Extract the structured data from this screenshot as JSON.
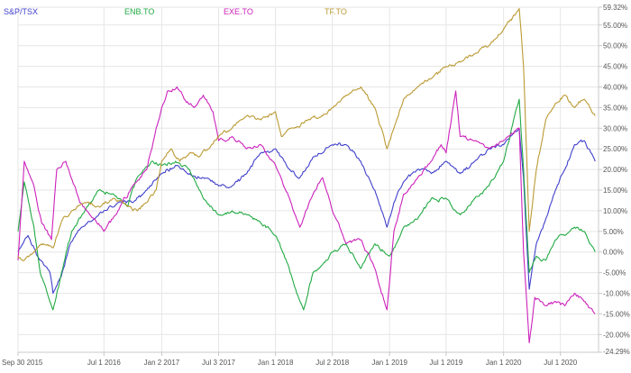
{
  "chart_data": {
    "type": "line",
    "title": "",
    "xlabel": "",
    "ylabel": "",
    "x_range": [
      "2015-09-30",
      "2020-10-31"
    ],
    "ylim": [
      -24.29,
      59.32
    ],
    "y_axis_side": "right",
    "grid": true,
    "legend_position": "top-left",
    "x_ticks": [
      {
        "date": "2015-09-30",
        "label": "Sep 30 2015"
      },
      {
        "date": "2016-07-01",
        "label": "Jul 1 2016"
      },
      {
        "date": "2017-01-02",
        "label": "Jan 2 2017"
      },
      {
        "date": "2017-07-03",
        "label": "Jul 3 2017"
      },
      {
        "date": "2018-01-01",
        "label": "Jan 1 2018"
      },
      {
        "date": "2018-07-02",
        "label": "Jul 2 2018"
      },
      {
        "date": "2019-01-01",
        "label": "Jan 1 2019"
      },
      {
        "date": "2019-07-01",
        "label": "Jul 1 2019"
      },
      {
        "date": "2020-01-01",
        "label": "Jan 1 2020"
      },
      {
        "date": "2020-07-01",
        "label": "Jul 1 2020"
      }
    ],
    "y_ticks": [
      {
        "value": 59.32,
        "label": "59.32%"
      },
      {
        "value": 55,
        "label": "55.00%"
      },
      {
        "value": 50,
        "label": "50.00%"
      },
      {
        "value": 45,
        "label": "45.00%"
      },
      {
        "value": 40,
        "label": "40.00%"
      },
      {
        "value": 35,
        "label": "35.00%"
      },
      {
        "value": 30,
        "label": "30.00%"
      },
      {
        "value": 25,
        "label": "25.00%"
      },
      {
        "value": 20,
        "label": "20.00%"
      },
      {
        "value": 15,
        "label": "15.00%"
      },
      {
        "value": 10,
        "label": "10.00%"
      },
      {
        "value": 5,
        "label": "5.00%"
      },
      {
        "value": 0,
        "label": "0.00%"
      },
      {
        "value": -5,
        "label": "-5.00%"
      },
      {
        "value": -10,
        "label": "-10.00%"
      },
      {
        "value": -15,
        "label": "-15.00%"
      },
      {
        "value": -20,
        "label": "-20.00%"
      },
      {
        "value": -24.29,
        "label": "-24.29%"
      }
    ],
    "series": [
      {
        "name": "S&P/TSX",
        "color": "#4040cc",
        "points": [
          [
            "2015-09-30",
            0
          ],
          [
            "2015-11-01",
            4
          ],
          [
            "2015-12-01",
            -1
          ],
          [
            "2016-01-10",
            -5
          ],
          [
            "2016-01-20",
            -10
          ],
          [
            "2016-02-15",
            -6
          ],
          [
            "2016-03-15",
            2
          ],
          [
            "2016-04-20",
            6
          ],
          [
            "2016-06-01",
            8
          ],
          [
            "2016-07-01",
            10
          ],
          [
            "2016-08-15",
            12
          ],
          [
            "2016-10-01",
            12
          ],
          [
            "2016-11-15",
            15
          ],
          [
            "2017-01-02",
            19
          ],
          [
            "2017-02-15",
            21
          ],
          [
            "2017-04-01",
            19
          ],
          [
            "2017-05-15",
            18
          ],
          [
            "2017-07-03",
            16
          ],
          [
            "2017-08-15",
            16
          ],
          [
            "2017-10-01",
            19
          ],
          [
            "2017-11-15",
            24
          ],
          [
            "2018-01-01",
            25
          ],
          [
            "2018-02-15",
            20
          ],
          [
            "2018-03-20",
            18
          ],
          [
            "2018-05-01",
            23
          ],
          [
            "2018-07-02",
            26
          ],
          [
            "2018-08-15",
            26
          ],
          [
            "2018-10-01",
            22
          ],
          [
            "2018-11-15",
            15
          ],
          [
            "2018-12-24",
            6
          ],
          [
            "2019-01-15",
            12
          ],
          [
            "2019-02-15",
            17
          ],
          [
            "2019-04-01",
            20
          ],
          [
            "2019-05-15",
            19
          ],
          [
            "2019-07-01",
            22
          ],
          [
            "2019-08-15",
            19
          ],
          [
            "2019-10-01",
            22
          ],
          [
            "2019-11-15",
            25
          ],
          [
            "2020-01-01",
            26
          ],
          [
            "2020-02-20",
            30
          ],
          [
            "2020-03-05",
            18
          ],
          [
            "2020-03-23",
            -9
          ],
          [
            "2020-04-15",
            2
          ],
          [
            "2020-05-15",
            8
          ],
          [
            "2020-06-15",
            15
          ],
          [
            "2020-07-15",
            20
          ],
          [
            "2020-08-15",
            26
          ],
          [
            "2020-09-15",
            27
          ],
          [
            "2020-10-20",
            22
          ]
        ]
      },
      {
        "name": "ENB.TO",
        "color": "#22aa44",
        "points": [
          [
            "2015-09-30",
            5
          ],
          [
            "2015-10-20",
            17
          ],
          [
            "2015-11-20",
            6
          ],
          [
            "2015-12-10",
            -5
          ],
          [
            "2016-01-20",
            -14
          ],
          [
            "2016-02-20",
            -4
          ],
          [
            "2016-03-20",
            5
          ],
          [
            "2016-05-01",
            10
          ],
          [
            "2016-06-15",
            15
          ],
          [
            "2016-08-01",
            14
          ],
          [
            "2016-09-15",
            11
          ],
          [
            "2016-10-15",
            18
          ],
          [
            "2016-12-01",
            22
          ],
          [
            "2017-01-02",
            21
          ],
          [
            "2017-02-15",
            22
          ],
          [
            "2017-04-01",
            20
          ],
          [
            "2017-05-15",
            13
          ],
          [
            "2017-07-03",
            9
          ],
          [
            "2017-08-15",
            10
          ],
          [
            "2017-10-01",
            9
          ],
          [
            "2017-11-15",
            7
          ],
          [
            "2018-01-01",
            4
          ],
          [
            "2018-02-10",
            -3
          ],
          [
            "2018-03-10",
            -10
          ],
          [
            "2018-04-01",
            -14
          ],
          [
            "2018-05-01",
            -5
          ],
          [
            "2018-06-01",
            -3
          ],
          [
            "2018-07-02",
            0
          ],
          [
            "2018-08-15",
            2
          ],
          [
            "2018-10-01",
            -4
          ],
          [
            "2018-11-15",
            2
          ],
          [
            "2019-01-01",
            -1
          ],
          [
            "2019-02-15",
            6
          ],
          [
            "2019-04-01",
            8
          ],
          [
            "2019-05-15",
            13
          ],
          [
            "2019-07-01",
            13
          ],
          [
            "2019-08-15",
            9
          ],
          [
            "2019-10-01",
            13
          ],
          [
            "2019-11-15",
            16
          ],
          [
            "2020-01-01",
            22
          ],
          [
            "2020-02-20",
            37
          ],
          [
            "2020-03-05",
            20
          ],
          [
            "2020-03-23",
            -5
          ],
          [
            "2020-04-15",
            -1
          ],
          [
            "2020-05-15",
            -2
          ],
          [
            "2020-06-15",
            3
          ],
          [
            "2020-07-15",
            4
          ],
          [
            "2020-08-15",
            6
          ],
          [
            "2020-09-15",
            5
          ],
          [
            "2020-10-20",
            0
          ]
        ]
      },
      {
        "name": "EXE.TO",
        "color": "#cc22bb",
        "points": [
          [
            "2015-09-30",
            -2
          ],
          [
            "2015-10-20",
            22
          ],
          [
            "2015-11-20",
            16
          ],
          [
            "2015-12-15",
            7
          ],
          [
            "2016-01-15",
            3
          ],
          [
            "2016-02-01",
            20
          ],
          [
            "2016-03-01",
            22
          ],
          [
            "2016-04-15",
            12
          ],
          [
            "2016-06-01",
            8
          ],
          [
            "2016-07-01",
            5
          ],
          [
            "2016-08-15",
            10
          ],
          [
            "2016-10-01",
            16
          ],
          [
            "2016-11-15",
            20
          ],
          [
            "2016-12-15",
            30
          ],
          [
            "2017-01-02",
            35
          ],
          [
            "2017-01-20",
            39
          ],
          [
            "2017-02-20",
            40
          ],
          [
            "2017-03-15",
            37
          ],
          [
            "2017-04-15",
            35
          ],
          [
            "2017-05-15",
            38
          ],
          [
            "2017-06-15",
            34
          ],
          [
            "2017-07-03",
            27
          ],
          [
            "2017-08-15",
            28
          ],
          [
            "2017-10-01",
            25
          ],
          [
            "2017-11-15",
            26
          ],
          [
            "2018-01-01",
            21
          ],
          [
            "2018-02-15",
            13
          ],
          [
            "2018-03-20",
            6
          ],
          [
            "2018-05-01",
            14
          ],
          [
            "2018-06-01",
            18
          ],
          [
            "2018-07-02",
            10
          ],
          [
            "2018-08-15",
            2
          ],
          [
            "2018-10-01",
            3
          ],
          [
            "2018-11-15",
            -4
          ],
          [
            "2018-12-24",
            -14
          ],
          [
            "2019-01-15",
            5
          ],
          [
            "2019-02-15",
            14
          ],
          [
            "2019-04-01",
            18
          ],
          [
            "2019-05-15",
            22
          ],
          [
            "2019-06-15",
            26
          ],
          [
            "2019-07-01",
            24
          ],
          [
            "2019-08-01",
            39
          ],
          [
            "2019-08-15",
            28
          ],
          [
            "2019-10-01",
            27
          ],
          [
            "2019-11-15",
            25
          ],
          [
            "2020-01-01",
            27
          ],
          [
            "2020-02-20",
            30
          ],
          [
            "2020-03-05",
            0
          ],
          [
            "2020-03-23",
            -22
          ],
          [
            "2020-04-10",
            -11
          ],
          [
            "2020-05-15",
            -13
          ],
          [
            "2020-06-15",
            -12
          ],
          [
            "2020-07-15",
            -13
          ],
          [
            "2020-08-15",
            -10
          ],
          [
            "2020-09-15",
            -12
          ],
          [
            "2020-10-20",
            -15
          ]
        ]
      },
      {
        "name": "TF.TO",
        "color": "#bb9a33",
        "points": [
          [
            "2015-09-30",
            -1
          ],
          [
            "2015-10-20",
            -2
          ],
          [
            "2015-11-20",
            0
          ],
          [
            "2015-12-20",
            2
          ],
          [
            "2016-01-20",
            1
          ],
          [
            "2016-02-20",
            8
          ],
          [
            "2016-03-20",
            10
          ],
          [
            "2016-05-01",
            12
          ],
          [
            "2016-06-15",
            11
          ],
          [
            "2016-08-01",
            13
          ],
          [
            "2016-09-15",
            11
          ],
          [
            "2016-10-15",
            10
          ],
          [
            "2016-11-15",
            12
          ],
          [
            "2016-12-15",
            15
          ],
          [
            "2017-01-02",
            22
          ],
          [
            "2017-02-01",
            25
          ],
          [
            "2017-03-01",
            22
          ],
          [
            "2017-04-01",
            24
          ],
          [
            "2017-05-01",
            23
          ],
          [
            "2017-06-01",
            25
          ],
          [
            "2017-07-03",
            28
          ],
          [
            "2017-08-15",
            30
          ],
          [
            "2017-10-01",
            33
          ],
          [
            "2017-11-15",
            32
          ],
          [
            "2018-01-01",
            34
          ],
          [
            "2018-01-20",
            28
          ],
          [
            "2018-03-01",
            30
          ],
          [
            "2018-04-15",
            32
          ],
          [
            "2018-06-01",
            33
          ],
          [
            "2018-07-02",
            35
          ],
          [
            "2018-08-15",
            38
          ],
          [
            "2018-10-01",
            40
          ],
          [
            "2018-11-15",
            35
          ],
          [
            "2018-12-24",
            25
          ],
          [
            "2019-01-15",
            30
          ],
          [
            "2019-02-15",
            37
          ],
          [
            "2019-04-01",
            40
          ],
          [
            "2019-05-15",
            42
          ],
          [
            "2019-07-01",
            45
          ],
          [
            "2019-08-15",
            46
          ],
          [
            "2019-10-01",
            48
          ],
          [
            "2019-11-15",
            50
          ],
          [
            "2020-01-01",
            54
          ],
          [
            "2020-02-20",
            59
          ],
          [
            "2020-03-05",
            45
          ],
          [
            "2020-03-23",
            5
          ],
          [
            "2020-04-15",
            20
          ],
          [
            "2020-05-15",
            32
          ],
          [
            "2020-06-15",
            36
          ],
          [
            "2020-07-15",
            38
          ],
          [
            "2020-08-15",
            35
          ],
          [
            "2020-09-15",
            37
          ],
          [
            "2020-10-20",
            33
          ]
        ]
      }
    ]
  }
}
